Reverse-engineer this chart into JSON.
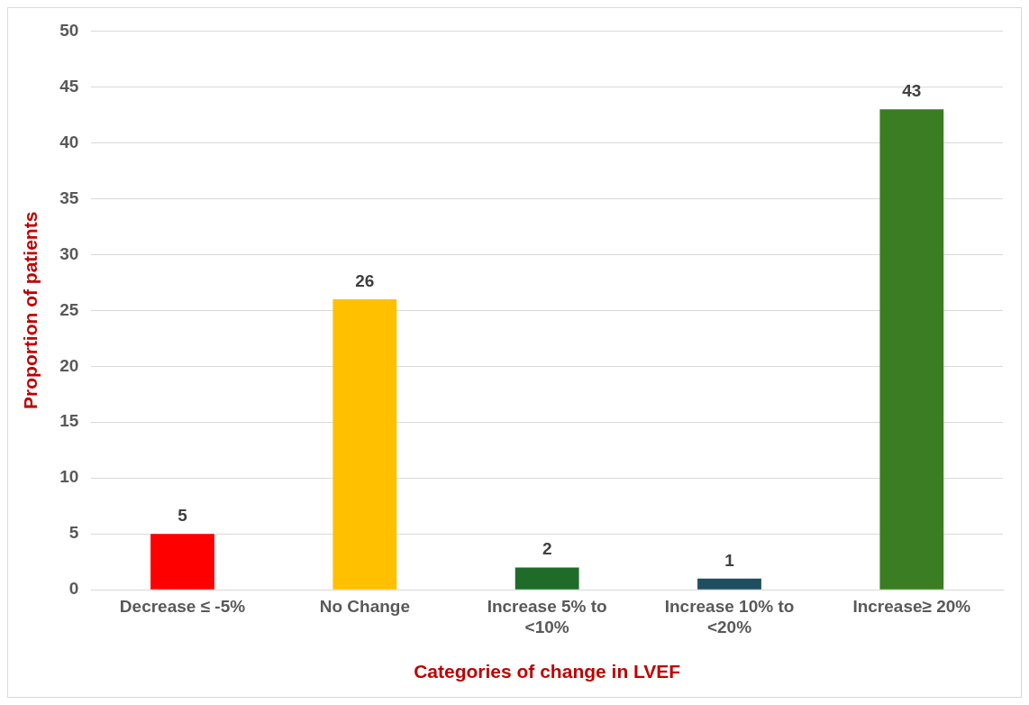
{
  "chart_data": {
    "type": "bar",
    "xlabel": "Categories of change in LVEF",
    "ylabel": "Proportion of patients",
    "categories": [
      "Decrease ≤ -5%",
      "No Change",
      "Increase 5% to <10%",
      "Increase 10% to <20%",
      "Increase≥ 20%"
    ],
    "values": [
      5,
      26,
      2,
      1,
      43
    ],
    "colors": [
      "#ff0000",
      "#ffc000",
      "#1e6b2a",
      "#1f4e60",
      "#3a7d22"
    ],
    "ylim": [
      0,
      50
    ],
    "yticks": [
      0,
      5,
      10,
      15,
      20,
      25,
      30,
      35,
      40,
      45,
      50
    ],
    "grid": "y",
    "data_labels": true
  }
}
